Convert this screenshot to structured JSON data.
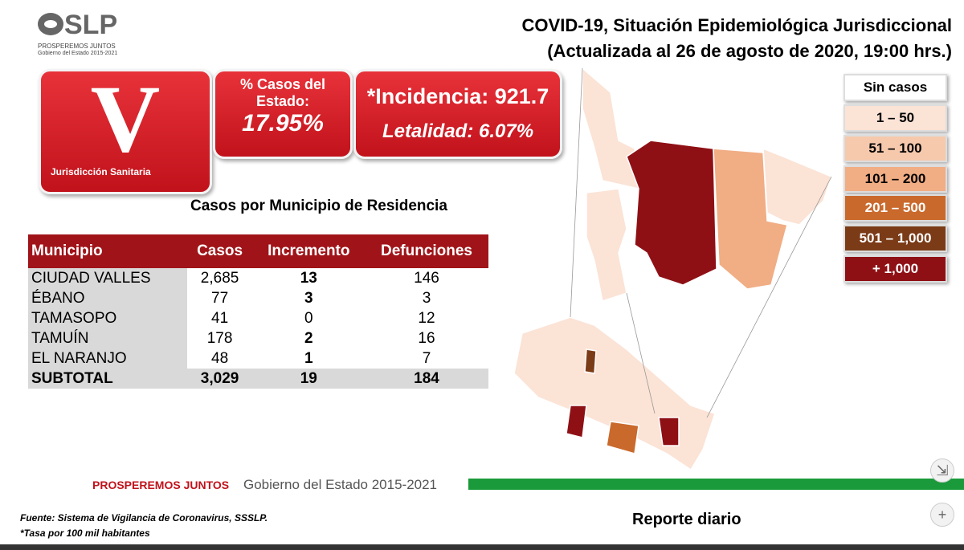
{
  "header": {
    "logo": "SLP",
    "logo_tagline": "PROSPEREMOS JUNTOS",
    "logo_subtitle": "Gobierno del Estado 2015-2021",
    "title_line1": "COVID-19, Situación Epidemiológica Jurisdiccional",
    "title_line2": "(Actualizada al 26 de agosto de 2020, 19:00 hrs.)"
  },
  "jurisdiction": {
    "letter": "V",
    "label": "Jurisdicción Sanitaria"
  },
  "stats": {
    "share_label_line1": "% Casos del",
    "share_label_line2": "Estado:",
    "share_value": "17.95%",
    "incidence": "*Incidencia: 921.7",
    "lethality": "Letalidad: 6.07%"
  },
  "table": {
    "title": "Casos por Municipio  de Residencia",
    "columns": [
      "Municipio",
      "Casos",
      "Incremento",
      "Defunciones"
    ],
    "rows": [
      [
        "CIUDAD VALLES",
        "2,685",
        "13",
        "146"
      ],
      [
        "ÉBANO",
        "77",
        "3",
        "3"
      ],
      [
        "TAMASOPO",
        "41",
        "0",
        "12"
      ],
      [
        "TAMUÍN",
        "178",
        "2",
        "16"
      ],
      [
        "EL NARANJO",
        "48",
        "1",
        "7"
      ]
    ],
    "total": [
      "SUBTOTAL",
      "3,029",
      "19",
      "184"
    ]
  },
  "legend": [
    {
      "label": "Sin casos",
      "color": "#ffffff"
    },
    {
      "label": "1 – 50",
      "color": "#fbe3d6"
    },
    {
      "label": "51 – 100",
      "color": "#f6c9ac"
    },
    {
      "label": "101 – 200",
      "color": "#f1ad84"
    },
    {
      "label": "201 – 500",
      "color": "#c9692c"
    },
    {
      "label": "501 – 1,000",
      "color": "#7b3b17"
    },
    {
      "label": "+ 1,000",
      "color": "#8e1015"
    }
  ],
  "footer": {
    "brand": "PROSPEREMOS JUNTOS",
    "brand_subtitle": "Gobierno del Estado 2015-2021",
    "source": "Fuente: Sistema de Vigilancia de Coronavirus, SSSLP.",
    "note": "*Tasa por 100 mil habitantes",
    "report": "Reporte diario"
  }
}
